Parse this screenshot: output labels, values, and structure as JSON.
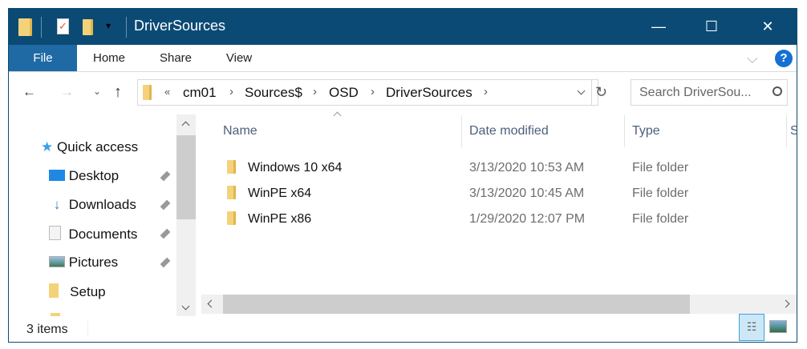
{
  "window": {
    "title": "DriverSources",
    "minimize": "—",
    "maximize": "☐",
    "close": "✕"
  },
  "ribbon": {
    "tabs": [
      "File",
      "Home",
      "Share",
      "View"
    ],
    "help": "?",
    "expand": "⌵"
  },
  "address": {
    "overflow": "«",
    "crumbs": [
      "cm01",
      "Sources$",
      "OSD",
      "DriverSources"
    ],
    "search_placeholder": "Search DriverSou..."
  },
  "nav": {
    "quick_access": "Quick access",
    "items": [
      {
        "label": "Desktop",
        "pinned": true
      },
      {
        "label": "Downloads",
        "pinned": true
      },
      {
        "label": "Documents",
        "pinned": true
      },
      {
        "label": "Pictures",
        "pinned": true
      },
      {
        "label": "Setup",
        "pinned": false
      }
    ]
  },
  "columns": [
    "Name",
    "Date modified",
    "Type",
    "S"
  ],
  "files": [
    {
      "name": "Windows 10 x64",
      "date": "3/13/2020 10:53 AM",
      "type": "File folder"
    },
    {
      "name": "WinPE x64",
      "date": "3/13/2020 10:45 AM",
      "type": "File folder"
    },
    {
      "name": "WinPE x86",
      "date": "1/29/2020 12:07 PM",
      "type": "File folder"
    }
  ],
  "status": {
    "items": "3 items"
  },
  "colors": {
    "titlebar": "#0b4a75",
    "file_tab": "#1f6aa5",
    "folder": "#f3d27a"
  }
}
